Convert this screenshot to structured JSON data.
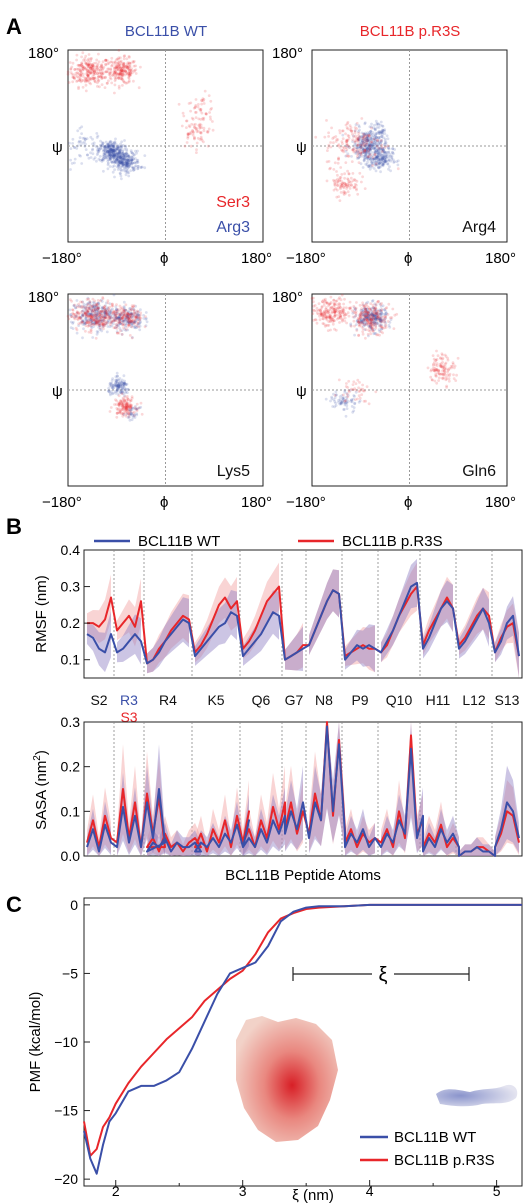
{
  "panel_letters": [
    "A",
    "B",
    "C"
  ],
  "colors": {
    "wt": "#3a4fa8",
    "mut": "#e8262a",
    "wt_band": "#8f7fc4",
    "mut_band": "#f2a0a0"
  },
  "chart_data": [
    {
      "type": "scatter",
      "panel": "A",
      "description_free": true,
      "column_titles": [
        "BCL11B WT",
        "BCL11B p.R3S"
      ],
      "xlabel": "ϕ",
      "ylabel": "ψ",
      "x_ticks": [
        "−180°",
        "180°"
      ],
      "y_ticks": [
        "180°"
      ],
      "xlim": [
        -180,
        180
      ],
      "ylim": [
        -180,
        180
      ],
      "subplots": [
        {
          "label": "Ser3",
          "label2": "Arg3",
          "clusters": [
            {
              "series": "mut",
              "phi": -140,
              "psi": 140,
              "sx": 20,
              "sy": 14,
              "n": 260
            },
            {
              "series": "mut",
              "phi": -80,
              "psi": 140,
              "sx": 14,
              "sy": 12,
              "n": 200
            },
            {
              "series": "mut",
              "phi": 65,
              "psi": 60,
              "sx": 14,
              "sy": 18,
              "n": 70
            },
            {
              "series": "mut",
              "phi": 50,
              "psi": 20,
              "sx": 12,
              "sy": 12,
              "n": 40
            },
            {
              "series": "wt",
              "phi": -100,
              "psi": -10,
              "sx": 12,
              "sy": 10,
              "n": 260
            },
            {
              "series": "wt",
              "phi": -75,
              "psi": -30,
              "sx": 14,
              "sy": 10,
              "n": 260
            },
            {
              "series": "wt",
              "phi": -150,
              "psi": 0,
              "sx": 20,
              "sy": 15,
              "n": 60
            }
          ]
        },
        {
          "label": "Arg4",
          "clusters": [
            {
              "series": "wt",
              "phi": -75,
              "psi": 0,
              "sx": 16,
              "sy": 16,
              "n": 320
            },
            {
              "series": "wt",
              "phi": -55,
              "psi": -25,
              "sx": 12,
              "sy": 10,
              "n": 160
            },
            {
              "series": "wt",
              "phi": -60,
              "psi": 30,
              "sx": 8,
              "sy": 8,
              "n": 40
            },
            {
              "series": "mut",
              "phi": -100,
              "psi": 5,
              "sx": 28,
              "sy": 22,
              "n": 170
            },
            {
              "series": "mut",
              "phi": -120,
              "psi": -70,
              "sx": 14,
              "sy": 12,
              "n": 90
            }
          ]
        },
        {
          "label": "Lys5",
          "clusters": [
            {
              "series": "wt",
              "phi": -130,
              "psi": 140,
              "sx": 22,
              "sy": 14,
              "n": 300
            },
            {
              "series": "mut",
              "phi": -130,
              "psi": 140,
              "sx": 22,
              "sy": 14,
              "n": 260
            },
            {
              "series": "wt",
              "phi": -70,
              "psi": 135,
              "sx": 14,
              "sy": 12,
              "n": 160
            },
            {
              "series": "mut",
              "phi": -70,
              "psi": 135,
              "sx": 14,
              "sy": 12,
              "n": 140
            },
            {
              "series": "wt",
              "phi": -85,
              "psi": 5,
              "sx": 10,
              "sy": 8,
              "n": 120
            },
            {
              "series": "mut",
              "phi": -75,
              "psi": -30,
              "sx": 10,
              "sy": 9,
              "n": 140
            },
            {
              "series": "wt",
              "phi": -60,
              "psi": -45,
              "sx": 6,
              "sy": 6,
              "n": 30
            }
          ]
        },
        {
          "label": "Gln6",
          "clusters": [
            {
              "series": "mut",
              "phi": -145,
              "psi": 145,
              "sx": 20,
              "sy": 14,
              "n": 220
            },
            {
              "series": "wt",
              "phi": -70,
              "psi": 135,
              "sx": 14,
              "sy": 12,
              "n": 260
            },
            {
              "series": "mut",
              "phi": -70,
              "psi": 135,
              "sx": 18,
              "sy": 14,
              "n": 200
            },
            {
              "series": "mut",
              "phi": 60,
              "psi": 40,
              "sx": 12,
              "sy": 14,
              "n": 110
            },
            {
              "series": "wt",
              "phi": -120,
              "psi": -20,
              "sx": 14,
              "sy": 10,
              "n": 70
            },
            {
              "series": "mut",
              "phi": -100,
              "psi": 0,
              "sx": 16,
              "sy": 12,
              "n": 40
            }
          ]
        }
      ]
    },
    {
      "type": "line",
      "panel": "B",
      "legend": [
        "BCL11B WT",
        "BCL11B p.R3S"
      ],
      "xlabel": "BCL11B Peptide Atoms",
      "residues": [
        "S2",
        "R3",
        "S3",
        "R4",
        "K5",
        "Q6",
        "G7",
        "N8",
        "P9",
        "Q10",
        "H11",
        "L12",
        "S13"
      ],
      "rmsf": {
        "ylabel": "RMSF (nm)",
        "ylim": [
          0.05,
          0.4
        ],
        "yticks": [
          "0.1",
          "0.2",
          "0.3",
          "0.4"
        ],
        "ytick_values": [
          0.1,
          0.2,
          0.3,
          0.4
        ],
        "segments": [
          {
            "res": "S2",
            "wt": [
              0.17,
              0.16,
              0.13,
              0.12,
              0.17
            ],
            "mut": [
              0.2,
              0.2,
              0.19,
              0.21,
              0.27
            ]
          },
          {
            "res": "R3",
            "wt": [
              0.12,
              0.13,
              0.15,
              0.17,
              0.15
            ],
            "mut": [
              0.18,
              0.2,
              0.22,
              0.19,
              0.26
            ]
          },
          {
            "res": "R4",
            "wt": [
              0.09,
              0.1,
              0.12,
              0.15,
              0.17,
              0.19,
              0.21,
              0.2
            ],
            "mut": [
              0.09,
              0.1,
              0.13,
              0.15,
              0.18,
              0.2,
              0.22,
              0.21
            ]
          },
          {
            "res": "K5",
            "wt": [
              0.11,
              0.13,
              0.15,
              0.17,
              0.19,
              0.2,
              0.23,
              0.22
            ],
            "mut": [
              0.12,
              0.14,
              0.17,
              0.21,
              0.25,
              0.27,
              0.24,
              0.26
            ]
          },
          {
            "res": "Q6",
            "wt": [
              0.11,
              0.13,
              0.15,
              0.17,
              0.2,
              0.23,
              0.22
            ],
            "mut": [
              0.13,
              0.15,
              0.18,
              0.22,
              0.26,
              0.28,
              0.3
            ]
          },
          {
            "res": "G7",
            "wt": [
              0.1,
              0.11,
              0.12,
              0.13
            ],
            "mut": [
              0.1,
              0.11,
              0.12,
              0.14
            ]
          },
          {
            "res": "N8",
            "wt": [
              0.14,
              0.18,
              0.22,
              0.26,
              0.29,
              0.28
            ],
            "mut": [
              0.14,
              0.18,
              0.22,
              0.26,
              0.29,
              0.28
            ]
          },
          {
            "res": "P9",
            "wt": [
              0.1,
              0.12,
              0.14,
              0.13,
              0.14,
              0.13
            ],
            "mut": [
              0.11,
              0.12,
              0.13,
              0.14,
              0.13,
              0.13
            ]
          },
          {
            "res": "Q10",
            "wt": [
              0.12,
              0.15,
              0.18,
              0.22,
              0.26,
              0.3,
              0.31
            ],
            "mut": [
              0.12,
              0.14,
              0.18,
              0.22,
              0.25,
              0.28,
              0.3
            ]
          },
          {
            "res": "H11",
            "wt": [
              0.13,
              0.16,
              0.2,
              0.24,
              0.26,
              0.24
            ],
            "mut": [
              0.14,
              0.18,
              0.21,
              0.24,
              0.27,
              0.24
            ]
          },
          {
            "res": "L12",
            "wt": [
              0.13,
              0.15,
              0.18,
              0.21,
              0.24,
              0.2
            ],
            "mut": [
              0.14,
              0.16,
              0.19,
              0.22,
              0.24,
              0.22
            ]
          },
          {
            "res": "S13",
            "wt": [
              0.12,
              0.15,
              0.2,
              0.22,
              0.11
            ],
            "mut": [
              0.12,
              0.16,
              0.19,
              0.2,
              0.11
            ]
          }
        ]
      },
      "sasa": {
        "ylabel": "SASA (nm²)",
        "ylabel_main": "SASA (nm",
        "ylabel_sup": "2",
        "ylabel_end": ")",
        "ylim": [
          0,
          0.3
        ],
        "yticks": [
          "0.0",
          "0.1",
          "0.2",
          "0.3"
        ],
        "ytick_values": [
          0,
          0.1,
          0.2,
          0.3
        ],
        "segments": [
          {
            "res": "S2",
            "wt": [
              0.02,
              0.06,
              0.01,
              0.07,
              0.03
            ],
            "mut": [
              0.03,
              0.08,
              0.02,
              0.09,
              0.04
            ]
          },
          {
            "res": "R3",
            "wt": [
              0.02,
              0.11,
              0.03,
              0.09,
              0.02,
              0.12,
              0.04,
              0.15,
              0.03
            ],
            "mut": [
              0.03,
              0.15,
              0.04,
              0.12,
              0.02,
              0.14,
              0.05,
              0.13,
              0.02
            ]
          },
          {
            "res": "R4",
            "wt": [
              0.01,
              0.03,
              0.02,
              0.04,
              0.01,
              0.03,
              0.02,
              0.02,
              0.03,
              0.01
            ],
            "mut": [
              0.02,
              0.04,
              0.01,
              0.05,
              0.02,
              0.03,
              0.01,
              0.03,
              0.04,
              0.02
            ]
          },
          {
            "res": "K5",
            "wt": [
              0.01,
              0.03,
              0.02,
              0.04,
              0.02,
              0.05,
              0.03,
              0.07,
              0.02,
              0.08
            ],
            "mut": [
              0.02,
              0.05,
              0.01,
              0.06,
              0.03,
              0.08,
              0.02,
              0.09,
              0.03,
              0.1
            ]
          },
          {
            "res": "Q6",
            "wt": [
              0.02,
              0.04,
              0.02,
              0.06,
              0.03,
              0.08,
              0.05,
              0.09
            ],
            "mut": [
              0.03,
              0.06,
              0.02,
              0.08,
              0.04,
              0.11,
              0.06,
              0.12
            ]
          },
          {
            "res": "G7",
            "wt": [
              0.05,
              0.1,
              0.06,
              0.12
            ],
            "mut": [
              0.06,
              0.12,
              0.05,
              0.1
            ]
          },
          {
            "res": "N8",
            "wt": [
              0.04,
              0.12,
              0.08,
              0.29,
              0.1,
              0.25,
              0.05
            ],
            "mut": [
              0.05,
              0.14,
              0.08,
              0.3,
              0.09,
              0.26,
              0.06
            ]
          },
          {
            "res": "P9",
            "wt": [
              0.02,
              0.05,
              0.03,
              0.06,
              0.02,
              0.04
            ],
            "mut": [
              0.03,
              0.06,
              0.02,
              0.05,
              0.03,
              0.04
            ]
          },
          {
            "res": "Q10",
            "wt": [
              0.02,
              0.05,
              0.03,
              0.08,
              0.05,
              0.24,
              0.04,
              0.09
            ],
            "mut": [
              0.03,
              0.06,
              0.02,
              0.1,
              0.04,
              0.27,
              0.05,
              0.08
            ]
          },
          {
            "res": "H11",
            "wt": [
              0.01,
              0.04,
              0.02,
              0.06,
              0.03,
              0.05,
              0.02
            ],
            "mut": [
              0.02,
              0.05,
              0.03,
              0.07,
              0.02,
              0.04,
              0.02
            ]
          },
          {
            "res": "L12",
            "wt": [
              0.0,
              0.01,
              0.01,
              0.02,
              0.01,
              0.01,
              0.0
            ],
            "mut": [
              0.0,
              0.01,
              0.01,
              0.02,
              0.02,
              0.01,
              0.0
            ]
          },
          {
            "res": "S13",
            "wt": [
              0.02,
              0.06,
              0.12,
              0.1,
              0.04
            ],
            "mut": [
              0.02,
              0.05,
              0.1,
              0.09,
              0.03
            ]
          }
        ]
      }
    },
    {
      "type": "line",
      "panel": "C",
      "xlabel": "ξ (nm)",
      "ylabel": "PMF (kcal/mol)",
      "xlim": [
        1.75,
        5.2
      ],
      "ylim": [
        -20.5,
        0.5
      ],
      "xticks": [
        2,
        3,
        4,
        5
      ],
      "yticks": [
        0,
        -5,
        -10,
        -15,
        -20
      ],
      "xtick_labels": [
        "2",
        "3",
        "4",
        "5"
      ],
      "ytick_labels": [
        "0",
        "−5",
        "−10",
        "−15",
        "−20"
      ],
      "xi_label": "ξ",
      "legend": [
        "BCL11B WT",
        "BCL11B p.R3S"
      ],
      "series": [
        {
          "name": "BCL11B WT",
          "key": "wt",
          "x": [
            1.75,
            1.8,
            1.85,
            1.9,
            1.95,
            2.0,
            2.1,
            2.2,
            2.3,
            2.4,
            2.5,
            2.6,
            2.7,
            2.8,
            2.9,
            3.0,
            3.1,
            3.2,
            3.3,
            3.4,
            3.5,
            3.6,
            3.8,
            4.0,
            4.5,
            5.0,
            5.2
          ],
          "y": [
            -16.5,
            -18.5,
            -19.6,
            -17.5,
            -15.8,
            -15.2,
            -13.6,
            -13.2,
            -13.2,
            -12.8,
            -12.2,
            -10.5,
            -8.5,
            -6.5,
            -5.0,
            -4.6,
            -4.2,
            -3.0,
            -1.2,
            -0.5,
            -0.2,
            -0.1,
            -0.1,
            0.0,
            0.0,
            0.0,
            0.0
          ]
        },
        {
          "name": "BCL11B p.R3S",
          "key": "mut",
          "x": [
            1.75,
            1.8,
            1.85,
            1.9,
            1.95,
            2.0,
            2.1,
            2.2,
            2.3,
            2.4,
            2.5,
            2.6,
            2.7,
            2.8,
            2.9,
            3.0,
            3.1,
            3.2,
            3.3,
            3.4,
            3.5,
            3.6,
            3.8,
            4.0,
            4.5,
            5.0,
            5.2
          ],
          "y": [
            -15.8,
            -18.3,
            -17.8,
            -16.2,
            -15.5,
            -14.5,
            -13.0,
            -11.8,
            -10.8,
            -9.8,
            -9.0,
            -8.2,
            -7.0,
            -6.2,
            -5.4,
            -4.8,
            -3.6,
            -2.0,
            -1.0,
            -0.6,
            -0.3,
            -0.2,
            -0.1,
            0.0,
            0.0,
            0.0,
            0.0
          ]
        }
      ]
    }
  ]
}
